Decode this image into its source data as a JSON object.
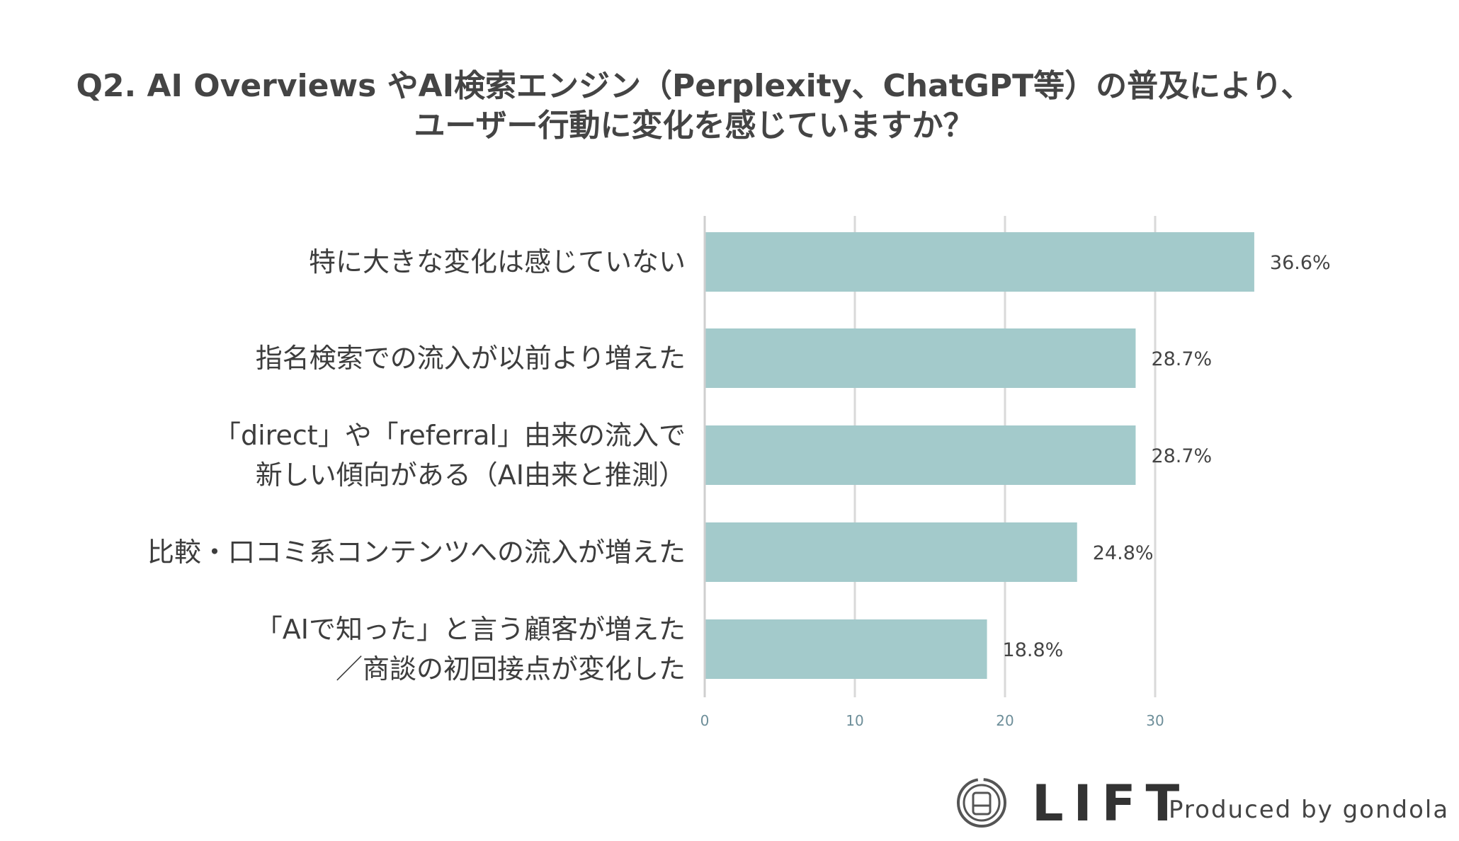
{
  "title_lines": [
    "Q2.  AI Overviews やAI検索エンジン（Perplexity、ChatGPT等）の普及により、",
    "ユーザー行動に変化を感じていますか？"
  ],
  "brand": {
    "name": "LIFT",
    "tagline": "Produced by gondola"
  },
  "colors": {
    "bar": "#a3cacb",
    "grid": "#d9d9d9",
    "tick": "#6d8e99"
  },
  "chart_data": {
    "type": "bar",
    "orientation": "horizontal",
    "categories": [
      [
        "特に大きな変化は感じていない"
      ],
      [
        "指名検索での流入が以前より増えた"
      ],
      [
        "「direct」や「referral」由来の流入で",
        "新しい傾向がある（AI由来と推測）"
      ],
      [
        "比較・口コミ系コンテンツへの流入が増えた"
      ],
      [
        "「AIで知った」と言う顧客が増えた",
        "／商談の初回接点が変化した"
      ]
    ],
    "values": [
      36.6,
      28.7,
      28.7,
      24.8,
      18.8
    ],
    "value_labels": [
      "36.6%",
      "28.7%",
      "28.7%",
      "24.8%",
      "18.8%"
    ],
    "xticks": [
      0,
      10,
      20,
      30
    ],
    "xlim": [
      0,
      40
    ],
    "grid": true,
    "legend": "none"
  }
}
